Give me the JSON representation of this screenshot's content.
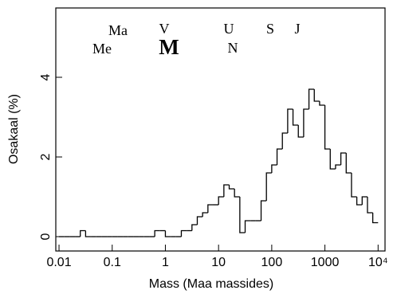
{
  "chart_data": {
    "type": "histogram",
    "x_label": "Mass (Maa massides)",
    "y_label": "Osakaal (%)",
    "log_x": true,
    "color": "#000000",
    "xlim": [
      0.0087,
      13500
    ],
    "ylim": [
      -0.36,
      5.74
    ],
    "xticks": [
      0.01,
      0.1,
      1,
      10,
      100,
      1000,
      {
        "value": 10000,
        "label": "10⁴"
      }
    ],
    "yticks": [
      0,
      2,
      4
    ],
    "annotations": [
      "Ma",
      "V",
      "U",
      "S",
      "J",
      "Me",
      "M",
      "N"
    ],
    "bins": [
      0.01,
      0.01259,
      0.01585,
      0.01995,
      0.02512,
      0.03162,
      0.03981,
      0.05012,
      0.0631,
      0.07943,
      0.1,
      0.1259,
      0.1585,
      0.1995,
      0.2512,
      0.3162,
      0.3981,
      0.5012,
      0.631,
      0.7943,
      1,
      1.259,
      1.585,
      1.995,
      2.512,
      3.162,
      3.981,
      5.012,
      6.31,
      7.943,
      10,
      12.59,
      15.85,
      19.95,
      25.12,
      31.62,
      39.81,
      50.12,
      63.1,
      79.43,
      100,
      125.9,
      158.5,
      199.5,
      251.2,
      316.2,
      398.1,
      501.2,
      631,
      794.3,
      1000,
      1259,
      1585,
      1995,
      2512,
      3162,
      3981,
      5012,
      6310,
      7943,
      10000
    ],
    "values": [
      0,
      0,
      0,
      0,
      0.15,
      0,
      0,
      0,
      0,
      0,
      0,
      0,
      0,
      0,
      0,
      0,
      0,
      0,
      0.15,
      0.15,
      0,
      0,
      0,
      0.15,
      0.15,
      0.3,
      0.5,
      0.6,
      0.8,
      0.8,
      1.0,
      1.3,
      1.2,
      1.0,
      0.1,
      0.4,
      0.4,
      0.4,
      0.9,
      1.6,
      1.8,
      2.2,
      2.6,
      3.2,
      2.8,
      2.5,
      3.2,
      3.7,
      3.4,
      3.3,
      2.2,
      1.7,
      1.8,
      2.1,
      1.6,
      1.0,
      0.8,
      1.0,
      0.6,
      0.35
    ]
  }
}
